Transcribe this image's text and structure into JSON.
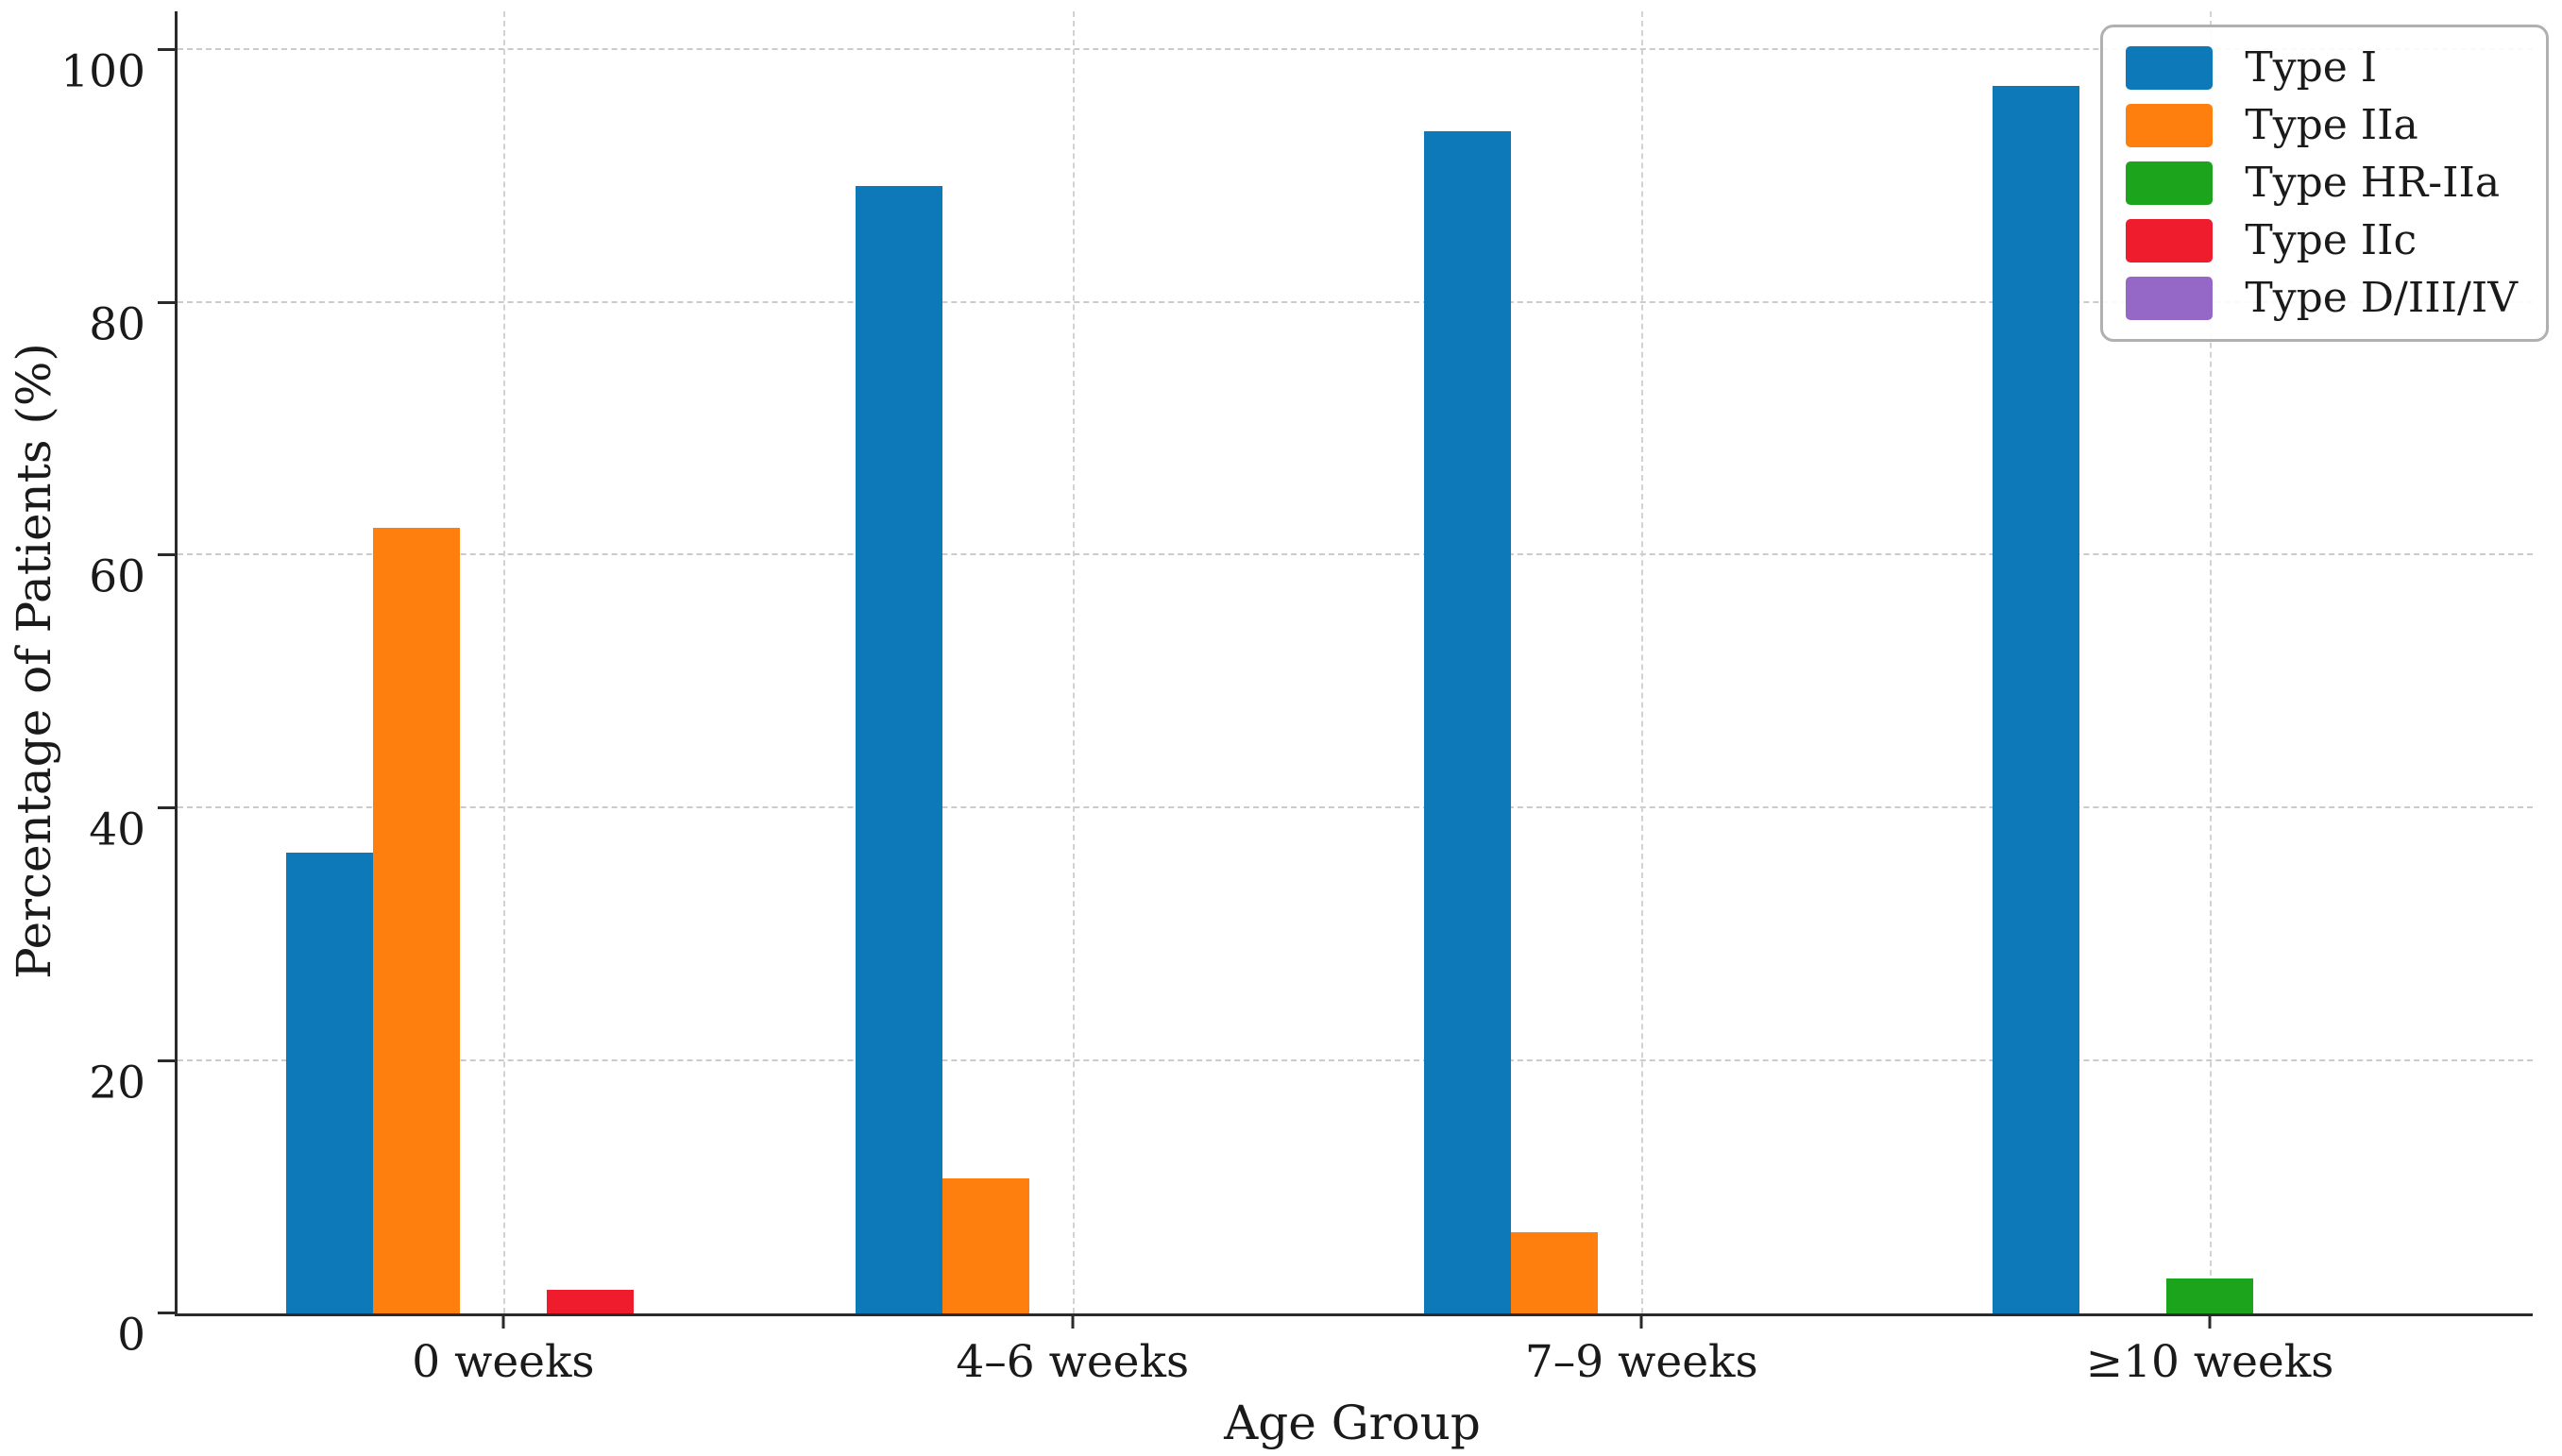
{
  "figure": {
    "background": "#ffffff",
    "text_color": "#1a1a1a",
    "spine_color": "#2a2a2a",
    "grid_color": "#cbcbcb"
  },
  "chart_data": {
    "type": "bar",
    "title": "",
    "xlabel": "Age Group",
    "ylabel": "Percentage of Patients (%)",
    "categories": [
      "0 weeks",
      "4–6 weeks",
      "7–9 weeks",
      "≥10 weeks"
    ],
    "series": [
      {
        "name": "Type I",
        "color": "#0e79b8",
        "values": [
          36.5,
          89.3,
          93.6,
          97.2
        ]
      },
      {
        "name": "Type IIa",
        "color": "#ff7f0e",
        "values": [
          62.2,
          10.7,
          6.4,
          0
        ]
      },
      {
        "name": "Type HR-IIa",
        "color": "#1ca51c",
        "values": [
          0,
          0,
          0,
          2.8
        ]
      },
      {
        "name": "Type IIc",
        "color": "#ee1c2c",
        "values": [
          1.9,
          0,
          0,
          0
        ]
      },
      {
        "name": "Type D/III/IV",
        "color": "#9568c8",
        "values": [
          0,
          0,
          0,
          0
        ]
      }
    ],
    "y_ticks": [
      0,
      20,
      40,
      60,
      80,
      100
    ],
    "ylim": [
      0,
      103
    ],
    "grid": "dashed horizontal lines at y ticks and dashed vertical lines at category centers",
    "legend_position": "upper right",
    "legend_entries": [
      "Type I",
      "Type IIa",
      "Type HR-IIa",
      "Type IIc",
      "Type D/III/IV"
    ]
  }
}
